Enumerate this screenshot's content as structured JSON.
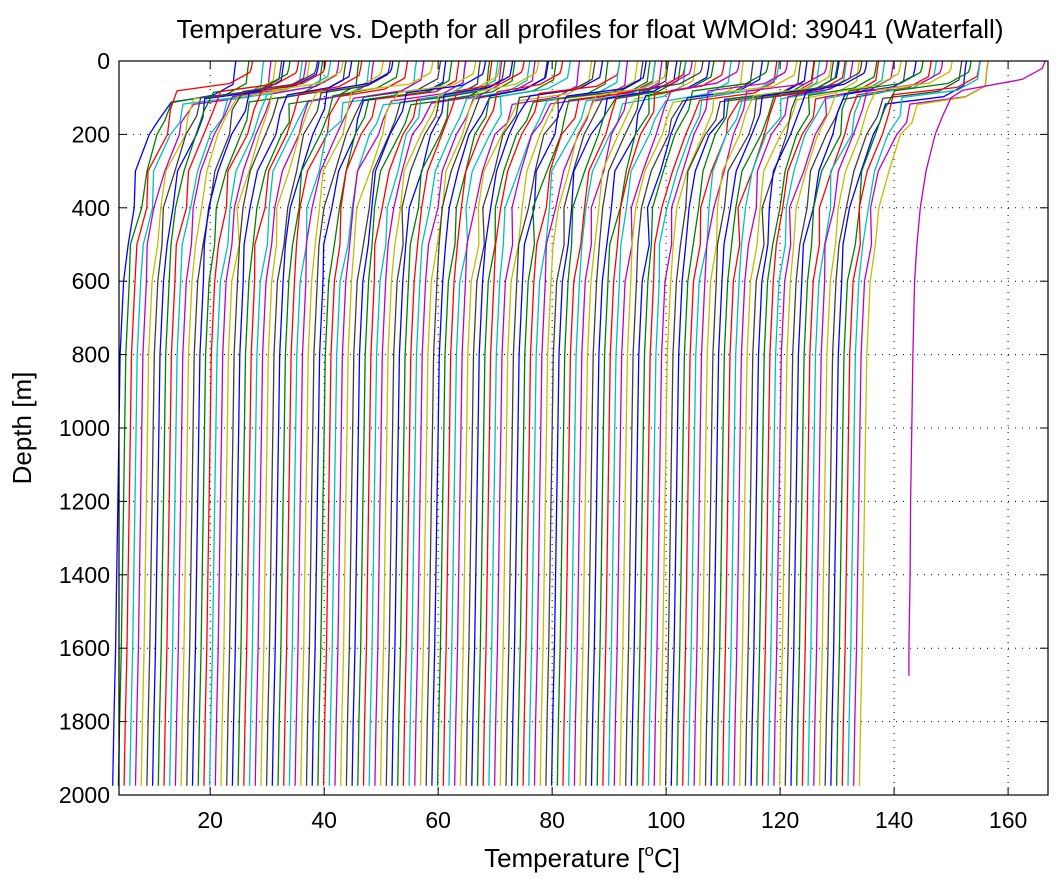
{
  "chart_data": {
    "type": "line",
    "title": "Temperature vs. Depth for all profiles for float WMOId: 39041 (Waterfall)",
    "xlabel_main": "Temperature [",
    "xlabel_sup": "o",
    "xlabel_tail": "C]",
    "ylabel": "Depth [m]",
    "xlim": [
      4,
      167
    ],
    "ylim": [
      0,
      2000
    ],
    "y_reversed": true,
    "grid": true,
    "xticks": [
      20,
      40,
      60,
      80,
      100,
      120,
      140,
      160
    ],
    "yticks": [
      0,
      200,
      400,
      600,
      800,
      1000,
      1200,
      1400,
      1600,
      1800,
      2000
    ],
    "colors": [
      "#0000ff",
      "#007f00",
      "#ff0000",
      "#00bfbf",
      "#bf00bf",
      "#bfbf00",
      "#3f3f3f"
    ],
    "profile_count": 133,
    "profile_offset_step": 1.0,
    "depth_levels": [
      0,
      20,
      50,
      80,
      100,
      150,
      200,
      300,
      400,
      500,
      600,
      800,
      1000,
      1200,
      1400,
      1600,
      1800,
      1975
    ],
    "base_profile_temps": [
      25.0,
      24.8,
      24.5,
      21.0,
      12.5,
      11.5,
      10.0,
      7.5,
      6.3,
      5.5,
      4.8,
      4.2,
      4.0,
      3.8,
      3.6,
      3.4,
      3.1,
      2.9
    ],
    "last_profile": {
      "depth": [
        0,
        20,
        50,
        80,
        100,
        150,
        200,
        300,
        400,
        500,
        600,
        800,
        1000,
        1200,
        1400,
        1600,
        1675
      ],
      "temperature": [
        166.5,
        166.0,
        162.5,
        152.0,
        150.0,
        148.5,
        147.2,
        145.6,
        144.6,
        144.0,
        143.6,
        143.3,
        143.1,
        142.9,
        142.8,
        142.6,
        142.6
      ]
    }
  }
}
